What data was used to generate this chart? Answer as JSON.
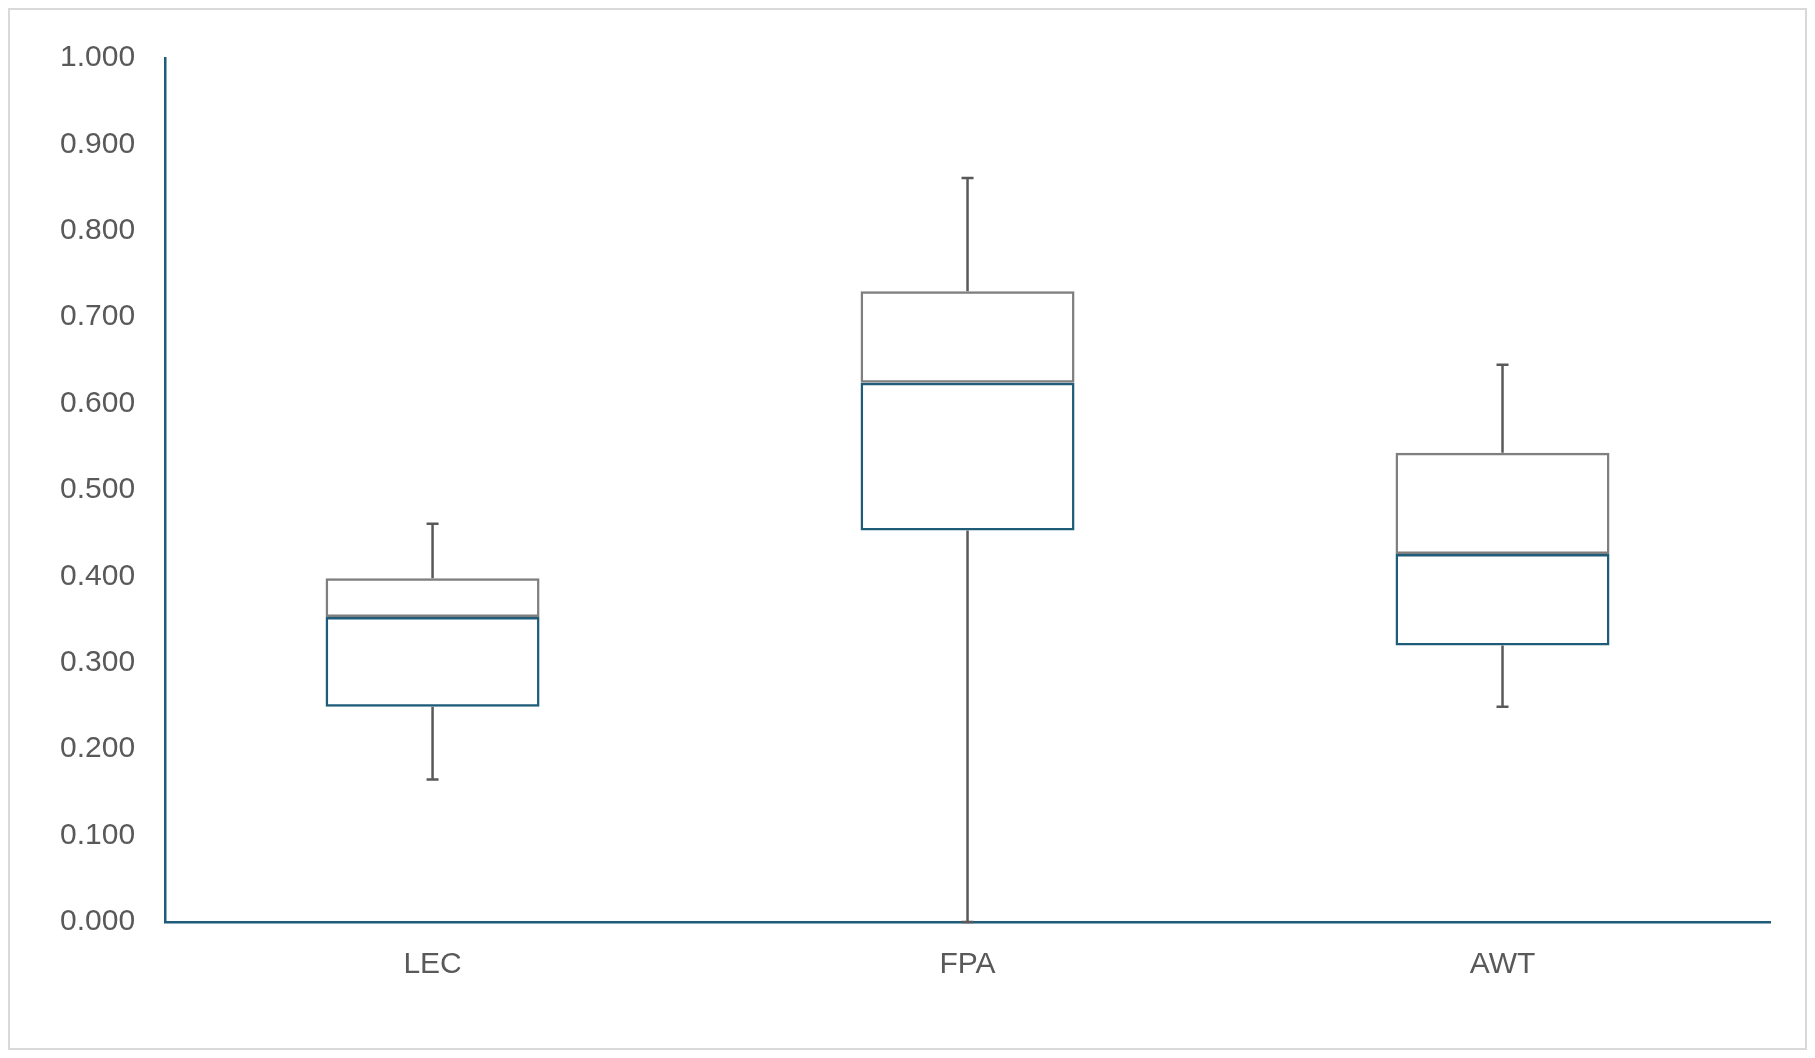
{
  "chart_data": {
    "type": "box",
    "categories": [
      "LEC",
      "FPA",
      "AWT"
    ],
    "series": [
      {
        "color": "#1f5c7a",
        "boxes": [
          {
            "low": 0.165,
            "q1": 0.249,
            "median": 0.353,
            "q3": 0.398,
            "high": 0.461
          },
          {
            "low": 0.0,
            "q1": 0.453,
            "median": 0.624,
            "q3": 0.73,
            "high": 0.861
          },
          {
            "low": 0.249,
            "q1": 0.32,
            "median": 0.426,
            "q3": 0.543,
            "high": 0.645
          }
        ]
      }
    ],
    "ylim": [
      0,
      1
    ],
    "yticks": [
      {
        "value": 0,
        "label": "0.000"
      },
      {
        "value": 0.1,
        "label": "0.100"
      },
      {
        "value": 0.2,
        "label": "0.200"
      },
      {
        "value": 0.3,
        "label": "0.300"
      },
      {
        "value": 0.4,
        "label": "0.400"
      },
      {
        "value": 0.5,
        "label": "0.500"
      },
      {
        "value": 0.6,
        "label": "0.600"
      },
      {
        "value": 0.7,
        "label": "0.700"
      },
      {
        "value": 0.8,
        "label": "0.800"
      },
      {
        "value": 0.9,
        "label": "0.900"
      },
      {
        "value": 1,
        "label": "1.000"
      }
    ]
  }
}
